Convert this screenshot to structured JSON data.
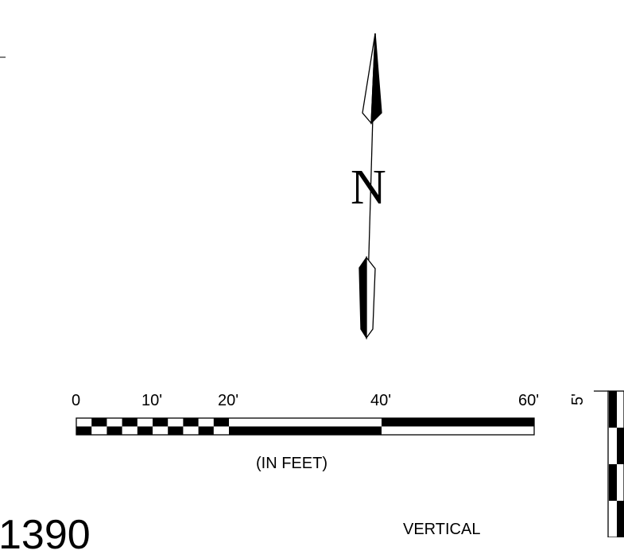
{
  "north_arrow": {
    "letter": "N"
  },
  "horizontal_scale": {
    "tick_labels": [
      "0",
      "10'",
      "20'",
      "40'",
      "60'"
    ],
    "tick_values": [
      0,
      10,
      20,
      40,
      60
    ],
    "max_value": 60,
    "unit_label": "(IN FEET)"
  },
  "vertical_scale": {
    "tick_label": "5'",
    "caption": "VERTICAL"
  },
  "partial_number": "1390",
  "colors": {
    "ink": "#000000",
    "paper": "#ffffff"
  }
}
